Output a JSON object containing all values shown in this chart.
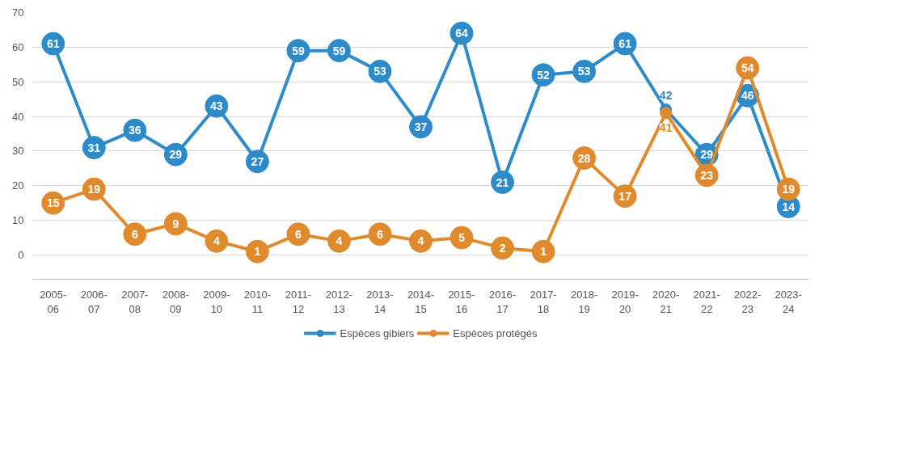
{
  "chart_data": {
    "type": "line",
    "categories": [
      "2005-06",
      "2006-07",
      "2007-08",
      "2008-09",
      "2009-10",
      "2010-11",
      "2011-12",
      "2012-13",
      "2013-14",
      "2014-15",
      "2015-16",
      "2016-17",
      "2017-18",
      "2018-19",
      "2019-20",
      "2020-21",
      "2021-22",
      "2022-23",
      "2023-24"
    ],
    "series": [
      {
        "name": "Espèces gibiers",
        "color": "#2e8bc9",
        "values": [
          61,
          31,
          36,
          29,
          43,
          27,
          59,
          59,
          53,
          37,
          64,
          21,
          52,
          53,
          61,
          42,
          29,
          46,
          14
        ]
      },
      {
        "name": "Espèces protégés",
        "color": "#e08a2e",
        "values": [
          15,
          19,
          6,
          9,
          4,
          1,
          6,
          4,
          6,
          4,
          5,
          2,
          1,
          28,
          17,
          41,
          23,
          54,
          19
        ]
      }
    ],
    "ylim": [
      -7,
      70
    ],
    "yticks": [
      0,
      10,
      20,
      30,
      40,
      50,
      60,
      70
    ],
    "grid": "y",
    "legend": "bottom",
    "marker": "circle",
    "line_style": "solid",
    "data_labels": true
  }
}
